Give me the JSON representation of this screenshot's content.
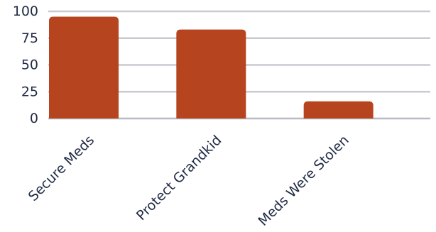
{
  "chart_data": {
    "type": "bar",
    "categories": [
      "Secure Meds",
      "Protect Grandkid",
      "Meds Were Stolen"
    ],
    "values": [
      95,
      83,
      16
    ],
    "title": "",
    "xlabel": "",
    "ylabel": "",
    "ylim": [
      0,
      100
    ],
    "yticks": [
      "0",
      "25",
      "50",
      "75",
      "100"
    ],
    "grid": true,
    "legend": "none",
    "bar_color": "#b5441f"
  }
}
